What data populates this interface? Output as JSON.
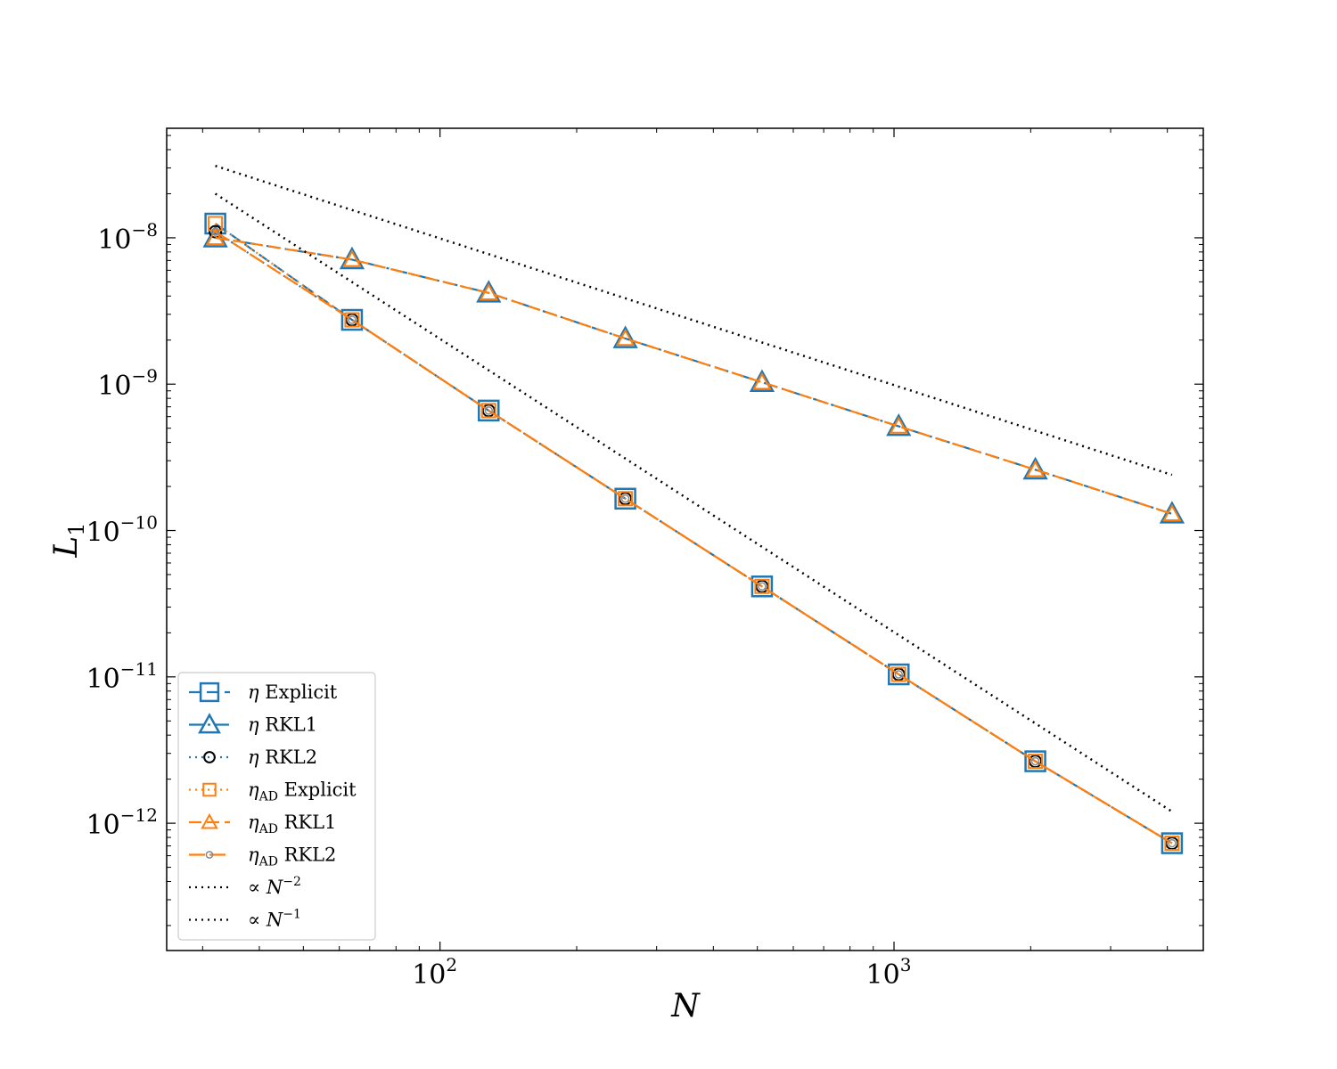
{
  "chart_data": {
    "type": "line",
    "title": "",
    "xlabel": "N",
    "ylabel": "L",
    "ylabel_sub": "1",
    "xscale": "log",
    "yscale": "log",
    "xlim": [
      25,
      4800
    ],
    "ylim": [
      1.35e-13,
      5.6e-08
    ],
    "grid": false,
    "legend_position": "lower-left",
    "x_ticks": [
      {
        "base": "10",
        "exp": "2",
        "value": 100
      },
      {
        "base": "10",
        "exp": "3",
        "value": 1000
      }
    ],
    "y_ticks": [
      {
        "base": "10",
        "exp": "−8",
        "value": 1e-08
      },
      {
        "base": "10",
        "exp": "−9",
        "value": 1e-09
      },
      {
        "base": "10",
        "exp": "−10",
        "value": 1e-10
      },
      {
        "base": "10",
        "exp": "−11",
        "value": 1e-11
      },
      {
        "base": "10",
        "exp": "−12",
        "value": 1e-12
      }
    ],
    "series": [
      {
        "name": "η Explicit",
        "name_main": "η",
        "name_sub": "",
        "name_rest": " Explicit",
        "color": "#1f77b4",
        "marker": "square",
        "dash": "dashed",
        "x": [
          32,
          64,
          128,
          256,
          512,
          1024,
          2048,
          4096
        ],
        "y": [
          1.25e-08,
          2.75e-09,
          6.6e-10,
          1.65e-10,
          4.15e-11,
          1.04e-11,
          2.65e-12,
          7.3e-13
        ]
      },
      {
        "name": "η RKL1",
        "name_main": "η",
        "name_sub": "",
        "name_rest": " RKL1",
        "color": "#1f77b4",
        "marker": "triangle",
        "dash": "dashdot",
        "x": [
          32,
          64,
          128,
          256,
          512,
          1024,
          2048,
          4096
        ],
        "y": [
          1e-08,
          7.1e-09,
          4.2e-09,
          2.05e-09,
          1.03e-09,
          5.15e-10,
          2.6e-10,
          1.3e-10
        ]
      },
      {
        "name": "η RKL2",
        "name_main": "η",
        "name_sub": "",
        "name_rest": " RKL2",
        "color": "#1f77b4",
        "marker": "circle-black",
        "dash": "dotted",
        "x": [
          32,
          64,
          128,
          256,
          512,
          1024,
          2048,
          4096
        ],
        "y": [
          1.1e-08,
          2.75e-09,
          6.6e-10,
          1.65e-10,
          4.15e-11,
          1.04e-11,
          2.65e-12,
          7.3e-13
        ]
      },
      {
        "name": "ηAD Explicit",
        "name_main": "η",
        "name_sub": "AD",
        "name_rest": " Explicit",
        "color": "#ff7f0e",
        "marker": "square-small",
        "dash": "dotted",
        "x": [
          32,
          64,
          128,
          256,
          512,
          1024,
          2048,
          4096
        ],
        "y": [
          1.25e-08,
          2.75e-09,
          6.6e-10,
          1.65e-10,
          4.15e-11,
          1.04e-11,
          2.65e-12,
          7.3e-13
        ]
      },
      {
        "name": "ηAD RKL1",
        "name_main": "η",
        "name_sub": "AD",
        "name_rest": " RKL1",
        "color": "#ff7f0e",
        "marker": "triangle-small",
        "dash": "dashed",
        "x": [
          32,
          64,
          128,
          256,
          512,
          1024,
          2048,
          4096
        ],
        "y": [
          1e-08,
          7.1e-09,
          4.2e-09,
          2.05e-09,
          1.03e-09,
          5.15e-10,
          2.6e-10,
          1.3e-10
        ]
      },
      {
        "name": "ηAD RKL2",
        "name_main": "η",
        "name_sub": "AD",
        "name_rest": " RKL2",
        "color": "#ff7f0e",
        "marker": "circle-grey",
        "dash": "longdash",
        "x": [
          32,
          64,
          128,
          256,
          512,
          1024,
          2048,
          4096
        ],
        "y": [
          1.1e-08,
          2.75e-09,
          6.6e-10,
          1.65e-10,
          4.15e-11,
          1.04e-11,
          2.65e-12,
          7.3e-13
        ]
      },
      {
        "name": "∝ N^−2",
        "name_main": "∝ N",
        "name_sup": "−2",
        "color": "#000000",
        "marker": "none",
        "dash": "dotted",
        "x": [
          32,
          4096
        ],
        "y": [
          2e-08,
          1.2e-12
        ]
      },
      {
        "name": "∝ N^−1",
        "name_main": "∝ N",
        "name_sup": "−1",
        "color": "#000000",
        "marker": "none",
        "dash": "dotted",
        "x": [
          32,
          4096
        ],
        "y": [
          3.1e-08,
          2.4e-10
        ]
      }
    ]
  }
}
